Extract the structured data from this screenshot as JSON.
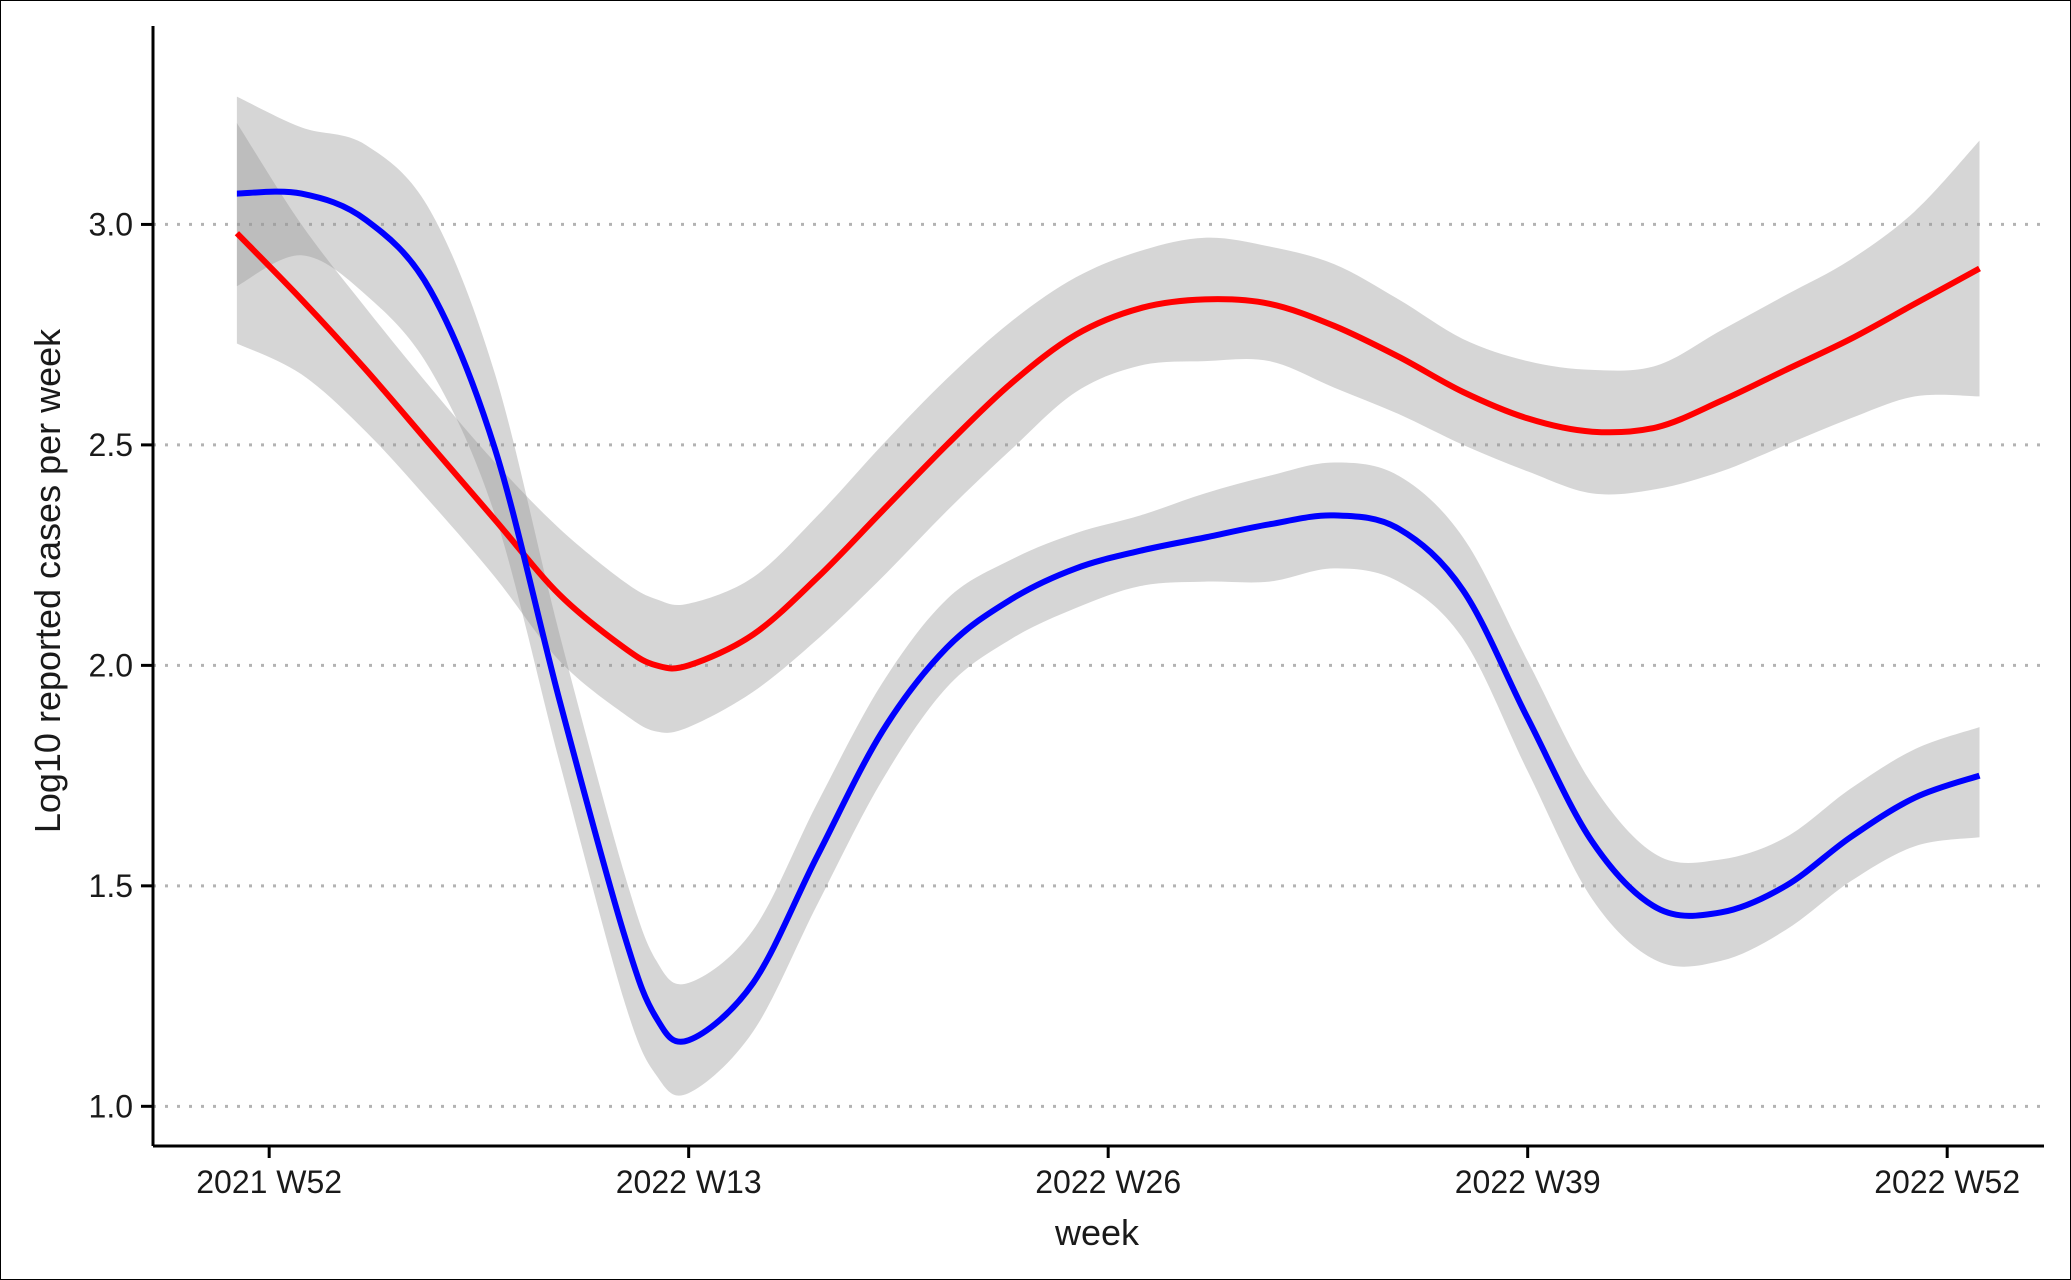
{
  "chart_data": {
    "type": "line",
    "title": "",
    "xlabel": "week",
    "ylabel": "Log10 reported cases per week",
    "x_tick_labels": [
      "2021 W52",
      "2022 W13",
      "2022 W26",
      "2022 W39",
      "2022 W52"
    ],
    "x_tick_index": [
      0,
      13,
      26,
      39,
      52
    ],
    "xlim_index": [
      -3.6,
      55.0
    ],
    "y_ticks": [
      1.0,
      1.5,
      2.0,
      2.5,
      3.0
    ],
    "y_tick_labels": [
      "1.0",
      "1.5",
      "2.0",
      "2.5",
      "3.0"
    ],
    "ylim": [
      0.91,
      3.45
    ],
    "grid": "horizontal dotted",
    "legend": "none",
    "x_week_index": [
      -1,
      1,
      3,
      5,
      7,
      9,
      11,
      12,
      13,
      15,
      17,
      19,
      21,
      23,
      25,
      27,
      29,
      31,
      33,
      35,
      37,
      39,
      41,
      43,
      45,
      47,
      49,
      51,
      53
    ],
    "series": [
      {
        "color": "#ff0000",
        "values": [
          2.98,
          2.83,
          2.67,
          2.5,
          2.33,
          2.16,
          2.04,
          2.0,
          2.0,
          2.07,
          2.2,
          2.35,
          2.5,
          2.64,
          2.75,
          2.81,
          2.83,
          2.82,
          2.77,
          2.7,
          2.62,
          2.56,
          2.53,
          2.54,
          2.6,
          2.67,
          2.74,
          2.82,
          2.9
        ],
        "band_lower": [
          2.73,
          2.66,
          2.53,
          2.37,
          2.2,
          2.01,
          1.89,
          1.85,
          1.86,
          1.94,
          2.06,
          2.2,
          2.35,
          2.49,
          2.62,
          2.68,
          2.69,
          2.69,
          2.63,
          2.57,
          2.5,
          2.44,
          2.39,
          2.4,
          2.44,
          2.5,
          2.56,
          2.61,
          2.61
        ],
        "band_upper": [
          3.23,
          3.0,
          2.81,
          2.63,
          2.46,
          2.31,
          2.19,
          2.15,
          2.14,
          2.2,
          2.34,
          2.5,
          2.65,
          2.78,
          2.88,
          2.94,
          2.97,
          2.95,
          2.91,
          2.83,
          2.74,
          2.69,
          2.67,
          2.68,
          2.76,
          2.84,
          2.92,
          3.03,
          3.19
        ]
      },
      {
        "color": "#0000ff",
        "values": [
          3.07,
          3.07,
          3.01,
          2.85,
          2.49,
          1.92,
          1.39,
          1.2,
          1.15,
          1.28,
          1.57,
          1.85,
          2.04,
          2.15,
          2.22,
          2.26,
          2.29,
          2.32,
          2.34,
          2.31,
          2.17,
          1.88,
          1.6,
          1.45,
          1.44,
          1.5,
          1.61,
          1.7,
          1.75
        ],
        "band_lower": [
          2.86,
          2.93,
          2.84,
          2.67,
          2.34,
          1.78,
          1.24,
          1.07,
          1.03,
          1.17,
          1.46,
          1.74,
          1.95,
          2.06,
          2.13,
          2.18,
          2.19,
          2.19,
          2.22,
          2.19,
          2.06,
          1.76,
          1.47,
          1.33,
          1.33,
          1.4,
          1.51,
          1.59,
          1.61
        ],
        "band_upper": [
          3.29,
          3.22,
          3.18,
          3.03,
          2.66,
          2.07,
          1.53,
          1.33,
          1.28,
          1.4,
          1.69,
          1.96,
          2.15,
          2.24,
          2.3,
          2.34,
          2.39,
          2.43,
          2.46,
          2.43,
          2.29,
          2.01,
          1.73,
          1.57,
          1.56,
          1.61,
          1.72,
          1.81,
          1.86
        ]
      }
    ]
  }
}
